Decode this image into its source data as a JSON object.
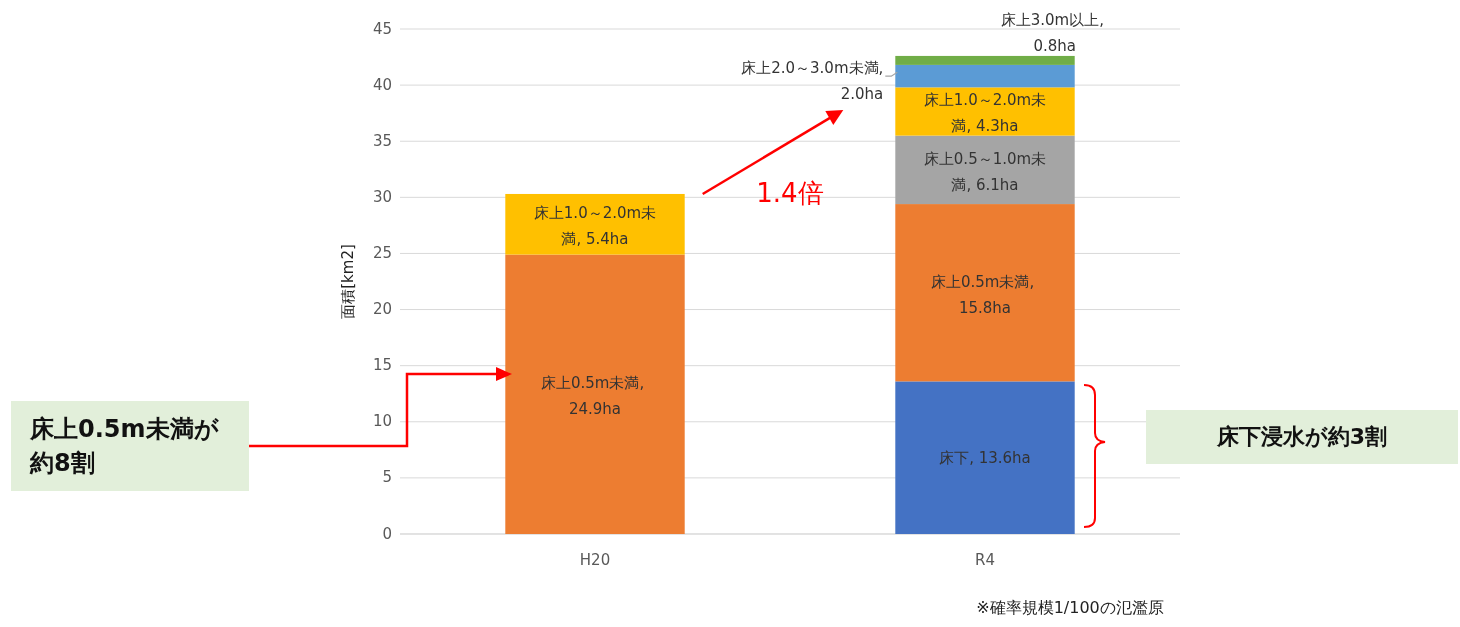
{
  "chart_data": {
    "type": "bar",
    "stacked": true,
    "ylabel": "面積[km2]",
    "categories": [
      "H20",
      "R4"
    ],
    "ylim": [
      0,
      45
    ],
    "yticks": [
      0,
      5,
      10,
      15,
      20,
      25,
      30,
      35,
      40,
      45
    ],
    "grid": "y",
    "series": [
      {
        "color": "#4472c4",
        "values": [
          null,
          13.6
        ],
        "value_labels": [
          null,
          "床下, 13.6ha"
        ]
      },
      {
        "color": "#ed7d31",
        "values": [
          24.9,
          15.8
        ],
        "value_labels": [
          "床上0.5m未満, 24.9ha",
          "床上0.5m未満, 15.8ha"
        ]
      },
      {
        "color": "#a5a5a5",
        "values": [
          null,
          6.1
        ],
        "value_labels": [
          null,
          "床上0.5～1.0m未満, 6.1ha"
        ]
      },
      {
        "color": "#ffc000",
        "values": [
          5.4,
          4.3
        ],
        "value_labels": [
          "床上1.0～2.0m未満, 5.4ha",
          "床上1.0～2.0m未満, 4.3ha"
        ]
      },
      {
        "color": "#5b9bd5",
        "values": [
          null,
          2.0
        ],
        "value_labels": [
          null,
          "床上2.0～3.0m未満, 2.0ha"
        ]
      },
      {
        "color": "#70ad47",
        "values": [
          null,
          0.8
        ],
        "value_labels": [
          null,
          "床上3.0m以上, 0.8ha"
        ]
      }
    ],
    "annotations": [
      "1.4倍",
      "床上0.5m未満が約8割",
      "床下浸水が約3割",
      "※確率規模1/100の氾濫原"
    ]
  }
}
